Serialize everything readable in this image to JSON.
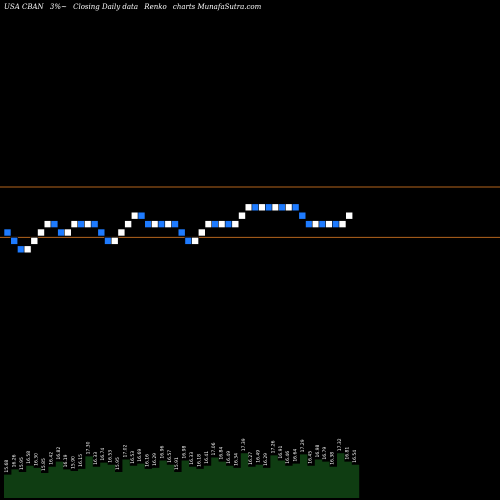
{
  "header": {
    "symbol": "USA CBAN",
    "change": "3%~",
    "description": "Closing Daily data",
    "chart_kind": "Renko",
    "brand": "charts MunafaSutra.com"
  },
  "colors": {
    "background": "#000000",
    "up_brick": "#ffffff",
    "down_brick": "#1e7bff",
    "level_line": "#b5651d",
    "volume_area": "#0f3d12"
  },
  "chart_data": {
    "type": "renko",
    "title": "",
    "levels": [
      17.4,
      16.8
    ],
    "bricks": [
      {
        "dir": "down",
        "close": 16.8
      },
      {
        "dir": "down",
        "close": 16.7
      },
      {
        "dir": "down",
        "close": 16.6
      },
      {
        "dir": "up",
        "close": 16.7
      },
      {
        "dir": "up",
        "close": 16.8
      },
      {
        "dir": "up",
        "close": 16.9
      },
      {
        "dir": "up",
        "close": 17.0
      },
      {
        "dir": "down",
        "close": 16.9
      },
      {
        "dir": "down",
        "close": 16.8
      },
      {
        "dir": "up",
        "close": 16.9
      },
      {
        "dir": "up",
        "close": 17.0
      },
      {
        "dir": "down",
        "close": 16.9
      },
      {
        "dir": "up",
        "close": 17.0
      },
      {
        "dir": "down",
        "close": 16.9
      },
      {
        "dir": "down",
        "close": 16.8
      },
      {
        "dir": "down",
        "close": 16.7
      },
      {
        "dir": "up",
        "close": 16.8
      },
      {
        "dir": "up",
        "close": 16.9
      },
      {
        "dir": "up",
        "close": 17.0
      },
      {
        "dir": "up",
        "close": 17.1
      },
      {
        "dir": "down",
        "close": 17.0
      },
      {
        "dir": "down",
        "close": 16.9
      },
      {
        "dir": "up",
        "close": 17.0
      },
      {
        "dir": "down",
        "close": 16.9
      },
      {
        "dir": "up",
        "close": 17.0
      },
      {
        "dir": "down",
        "close": 16.9
      },
      {
        "dir": "down",
        "close": 16.8
      },
      {
        "dir": "down",
        "close": 16.7
      },
      {
        "dir": "up",
        "close": 16.8
      },
      {
        "dir": "up",
        "close": 16.9
      },
      {
        "dir": "up",
        "close": 17.0
      },
      {
        "dir": "down",
        "close": 16.9
      },
      {
        "dir": "up",
        "close": 17.0
      },
      {
        "dir": "down",
        "close": 16.9
      },
      {
        "dir": "up",
        "close": 17.0
      },
      {
        "dir": "up",
        "close": 17.1
      },
      {
        "dir": "up",
        "close": 17.2
      },
      {
        "dir": "down",
        "close": 17.1
      },
      {
        "dir": "up",
        "close": 17.2
      },
      {
        "dir": "down",
        "close": 17.1
      },
      {
        "dir": "up",
        "close": 17.2
      },
      {
        "dir": "down",
        "close": 17.1
      },
      {
        "dir": "up",
        "close": 17.2
      },
      {
        "dir": "down",
        "close": 17.1
      },
      {
        "dir": "down",
        "close": 17.0
      },
      {
        "dir": "down",
        "close": 16.9
      },
      {
        "dir": "up",
        "close": 17.0
      },
      {
        "dir": "down",
        "close": 16.9
      },
      {
        "dir": "up",
        "close": 17.0
      },
      {
        "dir": "down",
        "close": 16.9
      },
      {
        "dir": "up",
        "close": 17.0
      },
      {
        "dir": "up",
        "close": 17.1
      }
    ],
    "volume_labels": [
      "15.68",
      "16.26",
      "15.95",
      "16.58",
      "16.30",
      "15.85",
      "16.42",
      "16.82",
      "16.19",
      "15.90",
      "16.15",
      "17.30",
      "16.33",
      "16.74",
      "16.53",
      "15.95",
      "17.02",
      "16.53",
      "16.69",
      "16.16",
      "16.29",
      "16.96",
      "16.57",
      "15.91",
      "16.98",
      "16.33",
      "16.18",
      "16.41",
      "17.06",
      "16.84",
      "16.49",
      "16.34",
      "17.39",
      "16.27",
      "16.49",
      "16.29",
      "17.26",
      "16.91",
      "16.46",
      "16.64",
      "17.29",
      "16.45",
      "16.98",
      "16.79",
      "16.38",
      "17.32",
      "16.81",
      "16.54"
    ],
    "volume_heights": [
      0.45,
      0.55,
      0.5,
      0.62,
      0.58,
      0.48,
      0.6,
      0.7,
      0.55,
      0.52,
      0.56,
      0.8,
      0.6,
      0.68,
      0.64,
      0.5,
      0.74,
      0.62,
      0.66,
      0.56,
      0.58,
      0.72,
      0.64,
      0.5,
      0.72,
      0.6,
      0.56,
      0.62,
      0.78,
      0.7,
      0.62,
      0.58,
      0.86,
      0.6,
      0.64,
      0.58,
      0.82,
      0.72,
      0.62,
      0.66,
      0.84,
      0.62,
      0.74,
      0.7,
      0.6,
      0.86,
      0.7,
      0.64
    ]
  }
}
